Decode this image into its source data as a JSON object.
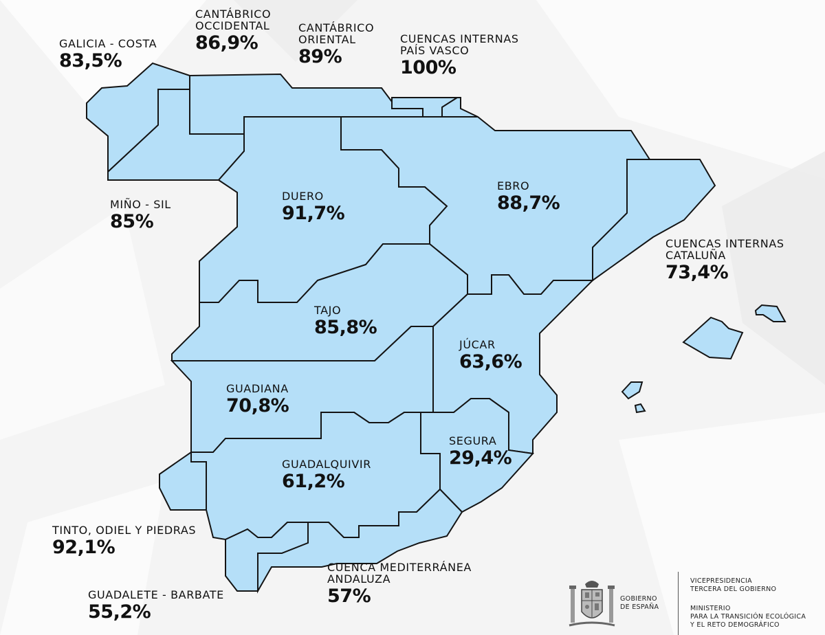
{
  "title": "",
  "regions": [
    {
      "id": "galicia-costa",
      "name": "GALICIA - COSTA",
      "value": "83,5%"
    },
    {
      "id": "cantabrico-occidental",
      "name": "CANTÁBRICO\nOCCIDENTAL",
      "value": "86,9%"
    },
    {
      "id": "cantabrico-oriental",
      "name": "CANTÁBRICO\nORIENTAL",
      "value": "89%"
    },
    {
      "id": "cuencas-internas-pais-vasco",
      "name": "CUENCAS INTERNAS\nPAÍS VASCO",
      "value": "100%"
    },
    {
      "id": "mino-sil",
      "name": "MIÑO - SIL",
      "value": "85%"
    },
    {
      "id": "duero",
      "name": "DUERO",
      "value": "91,7%"
    },
    {
      "id": "ebro",
      "name": "EBRO",
      "value": "88,7%"
    },
    {
      "id": "cuencas-internas-cataluna",
      "name": "CUENCAS INTERNAS\nCATALUÑA",
      "value": "73,4%"
    },
    {
      "id": "tajo",
      "name": "TAJO",
      "value": "85,8%"
    },
    {
      "id": "jucar",
      "name": "JÚCAR",
      "value": "63,6%"
    },
    {
      "id": "guadiana",
      "name": "GUADIANA",
      "value": "70,8%"
    },
    {
      "id": "segura",
      "name": "SEGURA",
      "value": "29,4%"
    },
    {
      "id": "guadalquivir",
      "name": "GUADALQUIVIR",
      "value": "61,2%"
    },
    {
      "id": "tinto-odiel-piedras",
      "name": "TINTO, ODIEL Y PIEDRAS",
      "value": "92,1%"
    },
    {
      "id": "guadalete-barbate",
      "name": "GUADALETE - BARBATE",
      "value": "55,2%"
    },
    {
      "id": "cuenca-mediterranea-andaluza",
      "name": "CUENCA MEDITERRÁNEA\nANDALUZA",
      "value": "57%"
    }
  ],
  "colors": {
    "basin_fill": "#b5dff8",
    "border": "#141414",
    "background": "#f4f4f4"
  },
  "footer": {
    "gobierno": "GOBIERNO\nDE ESPAÑA",
    "vicepresidencia": "VICEPRESIDENCIA\nTERCERA DEL GOBIERNO",
    "ministerio": "MINISTERIO\nPARA LA TRANSICIÓN ECOLÓGICA\nY EL RETO DEMOGRÁFICO",
    "coat_of_arms_icon": "coat-of-arms-icon"
  }
}
